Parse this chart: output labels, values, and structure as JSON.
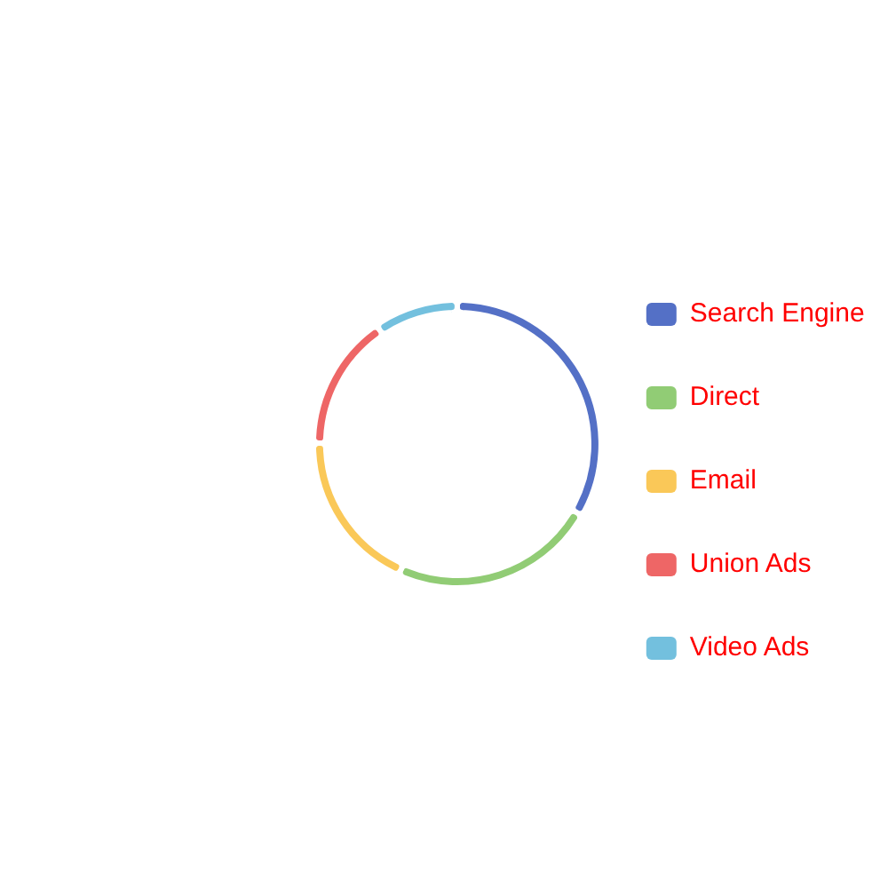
{
  "chart_data": {
    "type": "donut",
    "categories": [
      "Search Engine",
      "Direct",
      "Email",
      "Union Ads",
      "Video Ads"
    ],
    "values": [
      33.3,
      23.4,
      18.4,
      15.4,
      9.5
    ],
    "colors": [
      "#5470c6",
      "#91cc75",
      "#fac858",
      "#ee6666",
      "#73c0de"
    ],
    "legend": "right"
  }
}
